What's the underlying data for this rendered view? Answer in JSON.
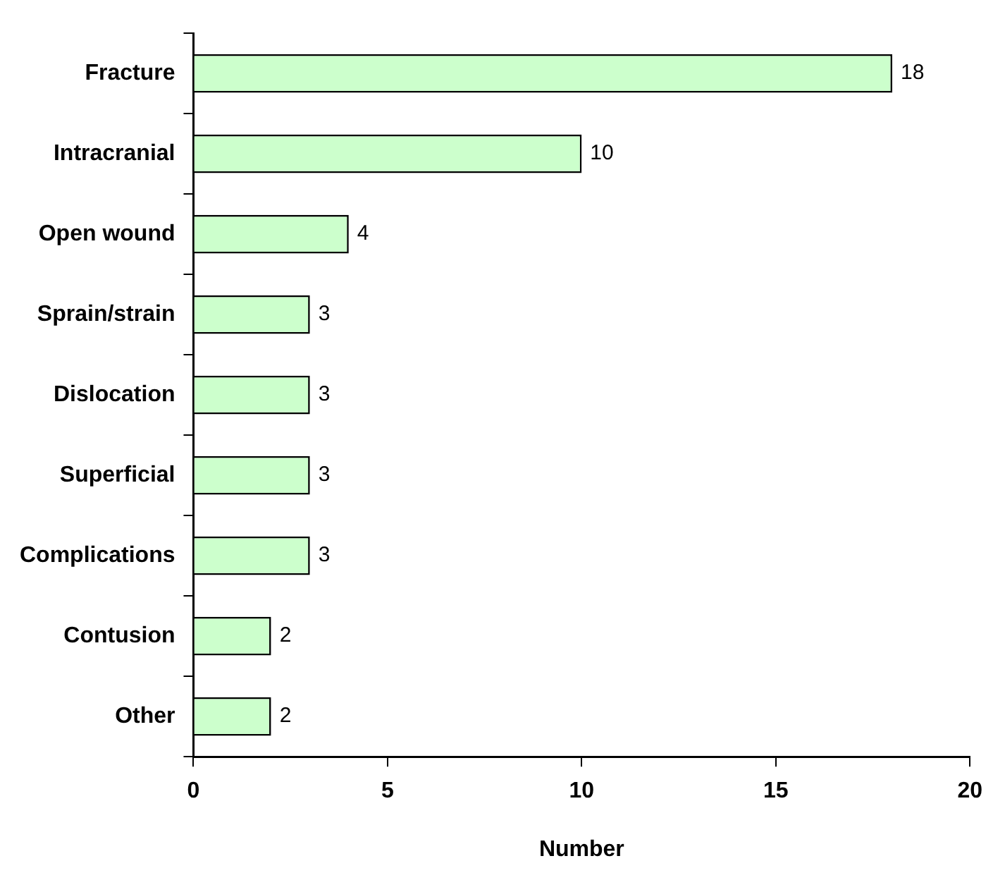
{
  "chart_data": {
    "type": "bar",
    "orientation": "horizontal",
    "xlabel": "Number",
    "categories": [
      "Fracture",
      "Intracranial",
      "Open wound",
      "Sprain/strain",
      "Dislocation",
      "Superficial",
      "Complications",
      "Contusion",
      "Other"
    ],
    "values": [
      18,
      10,
      4,
      3,
      3,
      3,
      3,
      2,
      2
    ],
    "color": "#ccffcc",
    "xlim": [
      0,
      20
    ],
    "xticks": [
      0,
      5,
      10,
      15,
      20
    ],
    "grid": false,
    "data_labels": true
  }
}
